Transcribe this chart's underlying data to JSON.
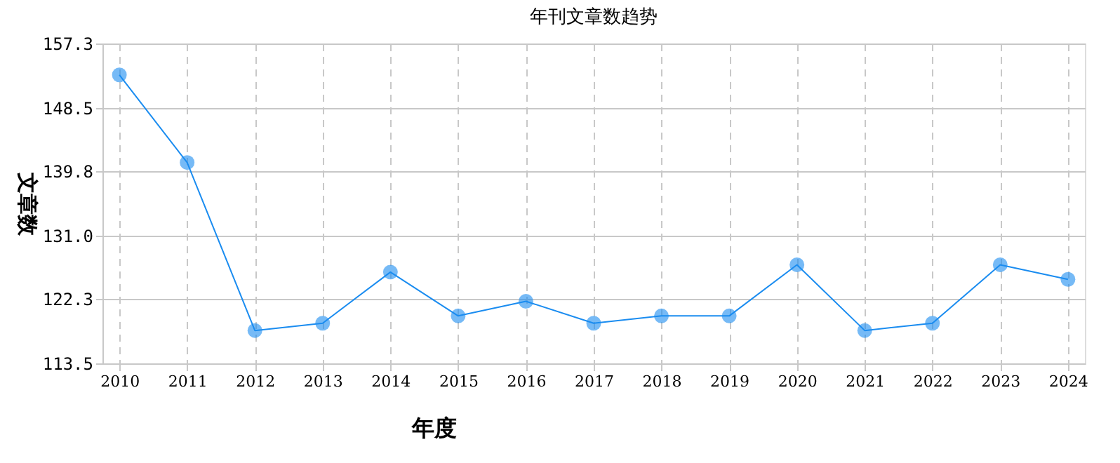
{
  "chart_data": {
    "type": "line",
    "title": "年刊文章数趋势",
    "xlabel": "年度",
    "ylabel": "文章数",
    "categories": [
      "2010",
      "2011",
      "2012",
      "2013",
      "2014",
      "2015",
      "2016",
      "2017",
      "2018",
      "2019",
      "2020",
      "2021",
      "2022",
      "2023",
      "2024"
    ],
    "series": [
      {
        "color": "#1a8cf0",
        "values": [
          153,
          141,
          118,
          119,
          126,
          120,
          122,
          119,
          120,
          120,
          127,
          118,
          119,
          127,
          125
        ]
      }
    ],
    "ylim": [
      113.5,
      157.3
    ],
    "yticks": [
      113.5,
      122.3,
      {
        "value": 131,
        "label": "131.0"
      },
      139.8,
      148.5,
      157.3
    ],
    "grid": true,
    "marker": "circle",
    "line_style": "solid"
  }
}
